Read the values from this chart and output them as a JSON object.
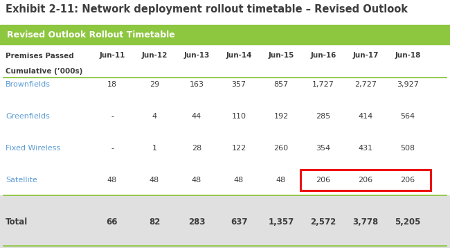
{
  "title": "Exhibit 2-11: Network deployment rollout timetable – Revised Outlook",
  "subtitle": "Revised Outlook Rollout Timetable",
  "col_header_row1": "Premises Passed",
  "col_header_row2": "Cumulative (’000s)",
  "columns": [
    "Jun-11",
    "Jun-12",
    "Jun-13",
    "Jun-14",
    "Jun-15",
    "Jun-16",
    "Jun-17",
    "Jun-18"
  ],
  "rows": [
    {
      "label": "Brownfields",
      "values": [
        "18",
        "29",
        "163",
        "357",
        "857",
        "1,727",
        "2,727",
        "3,927"
      ],
      "highlight_from": -1
    },
    {
      "label": "Greenfields",
      "values": [
        "-",
        "4",
        "44",
        "110",
        "192",
        "285",
        "414",
        "564"
      ],
      "highlight_from": -1
    },
    {
      "label": "Fixed Wireless",
      "values": [
        "-",
        "1",
        "28",
        "122",
        "260",
        "354",
        "431",
        "508"
      ],
      "highlight_from": -1
    },
    {
      "label": "Satellite",
      "values": [
        "48",
        "48",
        "48",
        "48",
        "48",
        "206",
        "206",
        "206"
      ],
      "highlight_from": 5
    }
  ],
  "total_row": {
    "label": "Total",
    "values": [
      "66",
      "82",
      "283",
      "637",
      "1,357",
      "2,572",
      "3,778",
      "5,205"
    ]
  },
  "title_color": "#3d3d3d",
  "title_fontsize": 10.5,
  "subtitle_bg_color": "#8dc63f",
  "subtitle_text_color": "#ffffff",
  "header_text_color": "#3d3d3d",
  "row_label_color": "#5b9bd5",
  "row_value_color": "#3d3d3d",
  "total_label_color": "#3d3d3d",
  "total_value_color": "#3d3d3d",
  "total_bg_color": "#e0e0e0",
  "highlight_box_color": "#ee1111",
  "divider_color": "#8dc63f",
  "bg_color": "#ffffff"
}
